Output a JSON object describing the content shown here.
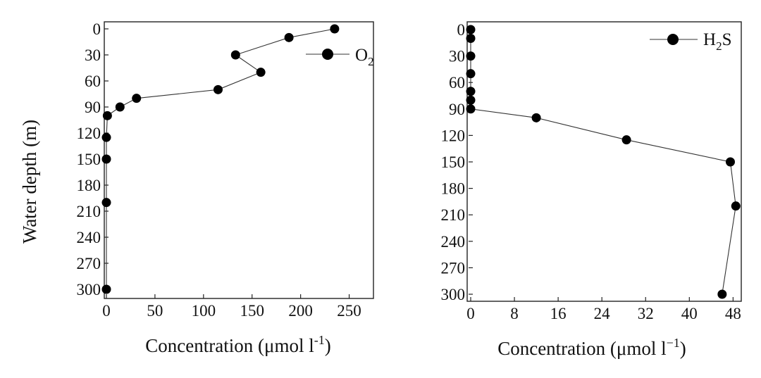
{
  "figure": {
    "ylabel": "Water depth (m)"
  },
  "chart_data": [
    {
      "type": "scatter",
      "xlabel_main": "Concentration (μmol l",
      "xlabel_sup": "-1",
      "xlabel_close": ")",
      "ylabel": "Water depth (m)",
      "xlim": [
        0,
        275
      ],
      "ylim": [
        0,
        310
      ],
      "y_inverted": true,
      "xticks": [
        0,
        50,
        100,
        150,
        200,
        250
      ],
      "yticks": [
        0,
        30,
        60,
        90,
        120,
        150,
        180,
        210,
        240,
        270,
        300
      ],
      "legend_position": "top-right",
      "series": [
        {
          "name": "O2",
          "legend_main": "O",
          "legend_sub": "2",
          "points": [
            {
              "x": 235,
              "y": 0
            },
            {
              "x": 188,
              "y": 10
            },
            {
              "x": 133,
              "y": 30
            },
            {
              "x": 159,
              "y": 50
            },
            {
              "x": 115,
              "y": 70
            },
            {
              "x": 31,
              "y": 80
            },
            {
              "x": 14,
              "y": 90
            },
            {
              "x": 1,
              "y": 100
            },
            {
              "x": 0,
              "y": 125
            },
            {
              "x": 0,
              "y": 150
            },
            {
              "x": 0,
              "y": 200
            },
            {
              "x": 0,
              "y": 300
            }
          ]
        }
      ]
    },
    {
      "type": "scatter",
      "xlabel_main": "Concentration (μmol l",
      "xlabel_sup": "−1",
      "xlabel_close": ")",
      "ylabel": "",
      "xlim": [
        0,
        49.5
      ],
      "ylim": [
        0,
        310
      ],
      "y_inverted": true,
      "xticks": [
        0,
        8,
        16,
        24,
        32,
        40,
        48
      ],
      "yticks": [
        0,
        30,
        60,
        90,
        120,
        150,
        180,
        210,
        240,
        270,
        300
      ],
      "legend_position": "top-right",
      "series": [
        {
          "name": "H2S",
          "legend_main": "H",
          "legend_sub": "2",
          "legend_after": "S",
          "points": [
            {
              "x": 0,
              "y": 0
            },
            {
              "x": 0,
              "y": 10
            },
            {
              "x": 0,
              "y": 30
            },
            {
              "x": 0,
              "y": 50
            },
            {
              "x": 0,
              "y": 70
            },
            {
              "x": 0,
              "y": 80
            },
            {
              "x": 0,
              "y": 90
            },
            {
              "x": 12,
              "y": 100
            },
            {
              "x": 28.5,
              "y": 125
            },
            {
              "x": 47.5,
              "y": 150
            },
            {
              "x": 48.5,
              "y": 200
            },
            {
              "x": 46,
              "y": 300
            }
          ]
        }
      ]
    }
  ]
}
